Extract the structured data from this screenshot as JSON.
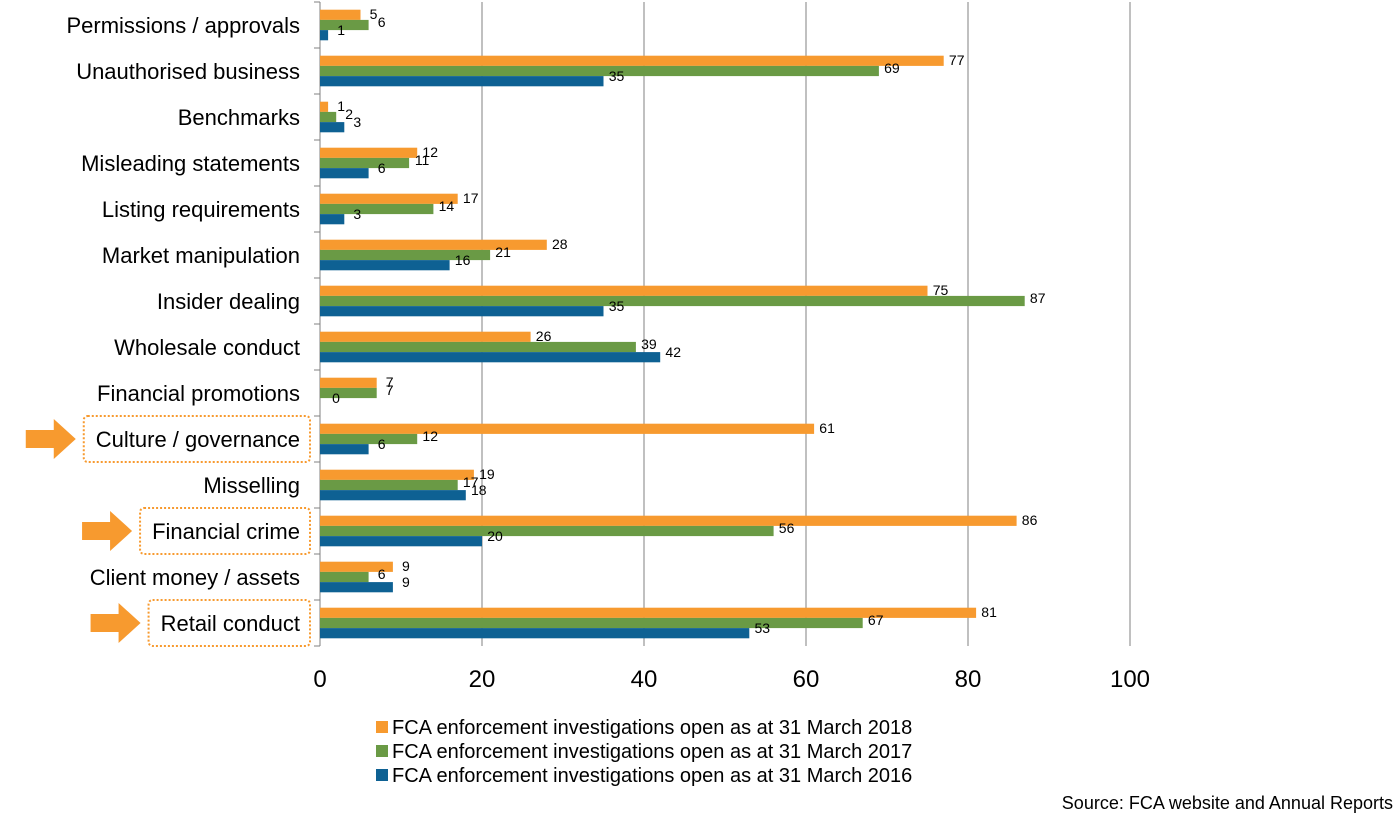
{
  "chart_data": {
    "type": "bar",
    "orientation": "horizontal",
    "categories": [
      "Permissions / approvals",
      "Unauthorised business",
      "Benchmarks",
      "Misleading statements",
      "Listing requirements",
      "Market manipulation",
      "Insider dealing",
      "Wholesale conduct",
      "Financial promotions",
      "Culture / governance",
      "Misselling",
      "Financial crime",
      "Client money / assets",
      "Retail conduct"
    ],
    "highlighted_categories": [
      "Culture / governance",
      "Financial crime",
      "Retail conduct"
    ],
    "series": [
      {
        "name": "FCA enforcement investigations open as at 31 March 2018",
        "color": "#F79A2F",
        "values": [
          5,
          77,
          1,
          12,
          17,
          28,
          75,
          26,
          7,
          61,
          19,
          86,
          9,
          81
        ]
      },
      {
        "name": "FCA enforcement investigations open as at 31 March 2017",
        "color": "#6A9A45",
        "values": [
          6,
          69,
          2,
          11,
          14,
          21,
          87,
          39,
          7,
          12,
          17,
          56,
          6,
          67
        ]
      },
      {
        "name": "FCA enforcement investigations open as at 31 March 2016",
        "color": "#0E6193",
        "values": [
          1,
          35,
          3,
          6,
          3,
          16,
          35,
          42,
          0,
          6,
          18,
          20,
          9,
          53
        ]
      }
    ],
    "xlim": [
      0,
      100
    ],
    "xticks": [
      0,
      20,
      40,
      60,
      80,
      100
    ],
    "grid": "vertical",
    "legend": "bottom",
    "source": "Source: FCA website and Annual  Reports"
  },
  "colors": {
    "arrow": "#F79A2F",
    "highlight_border": "#F79A2F",
    "grid": "#808080"
  }
}
